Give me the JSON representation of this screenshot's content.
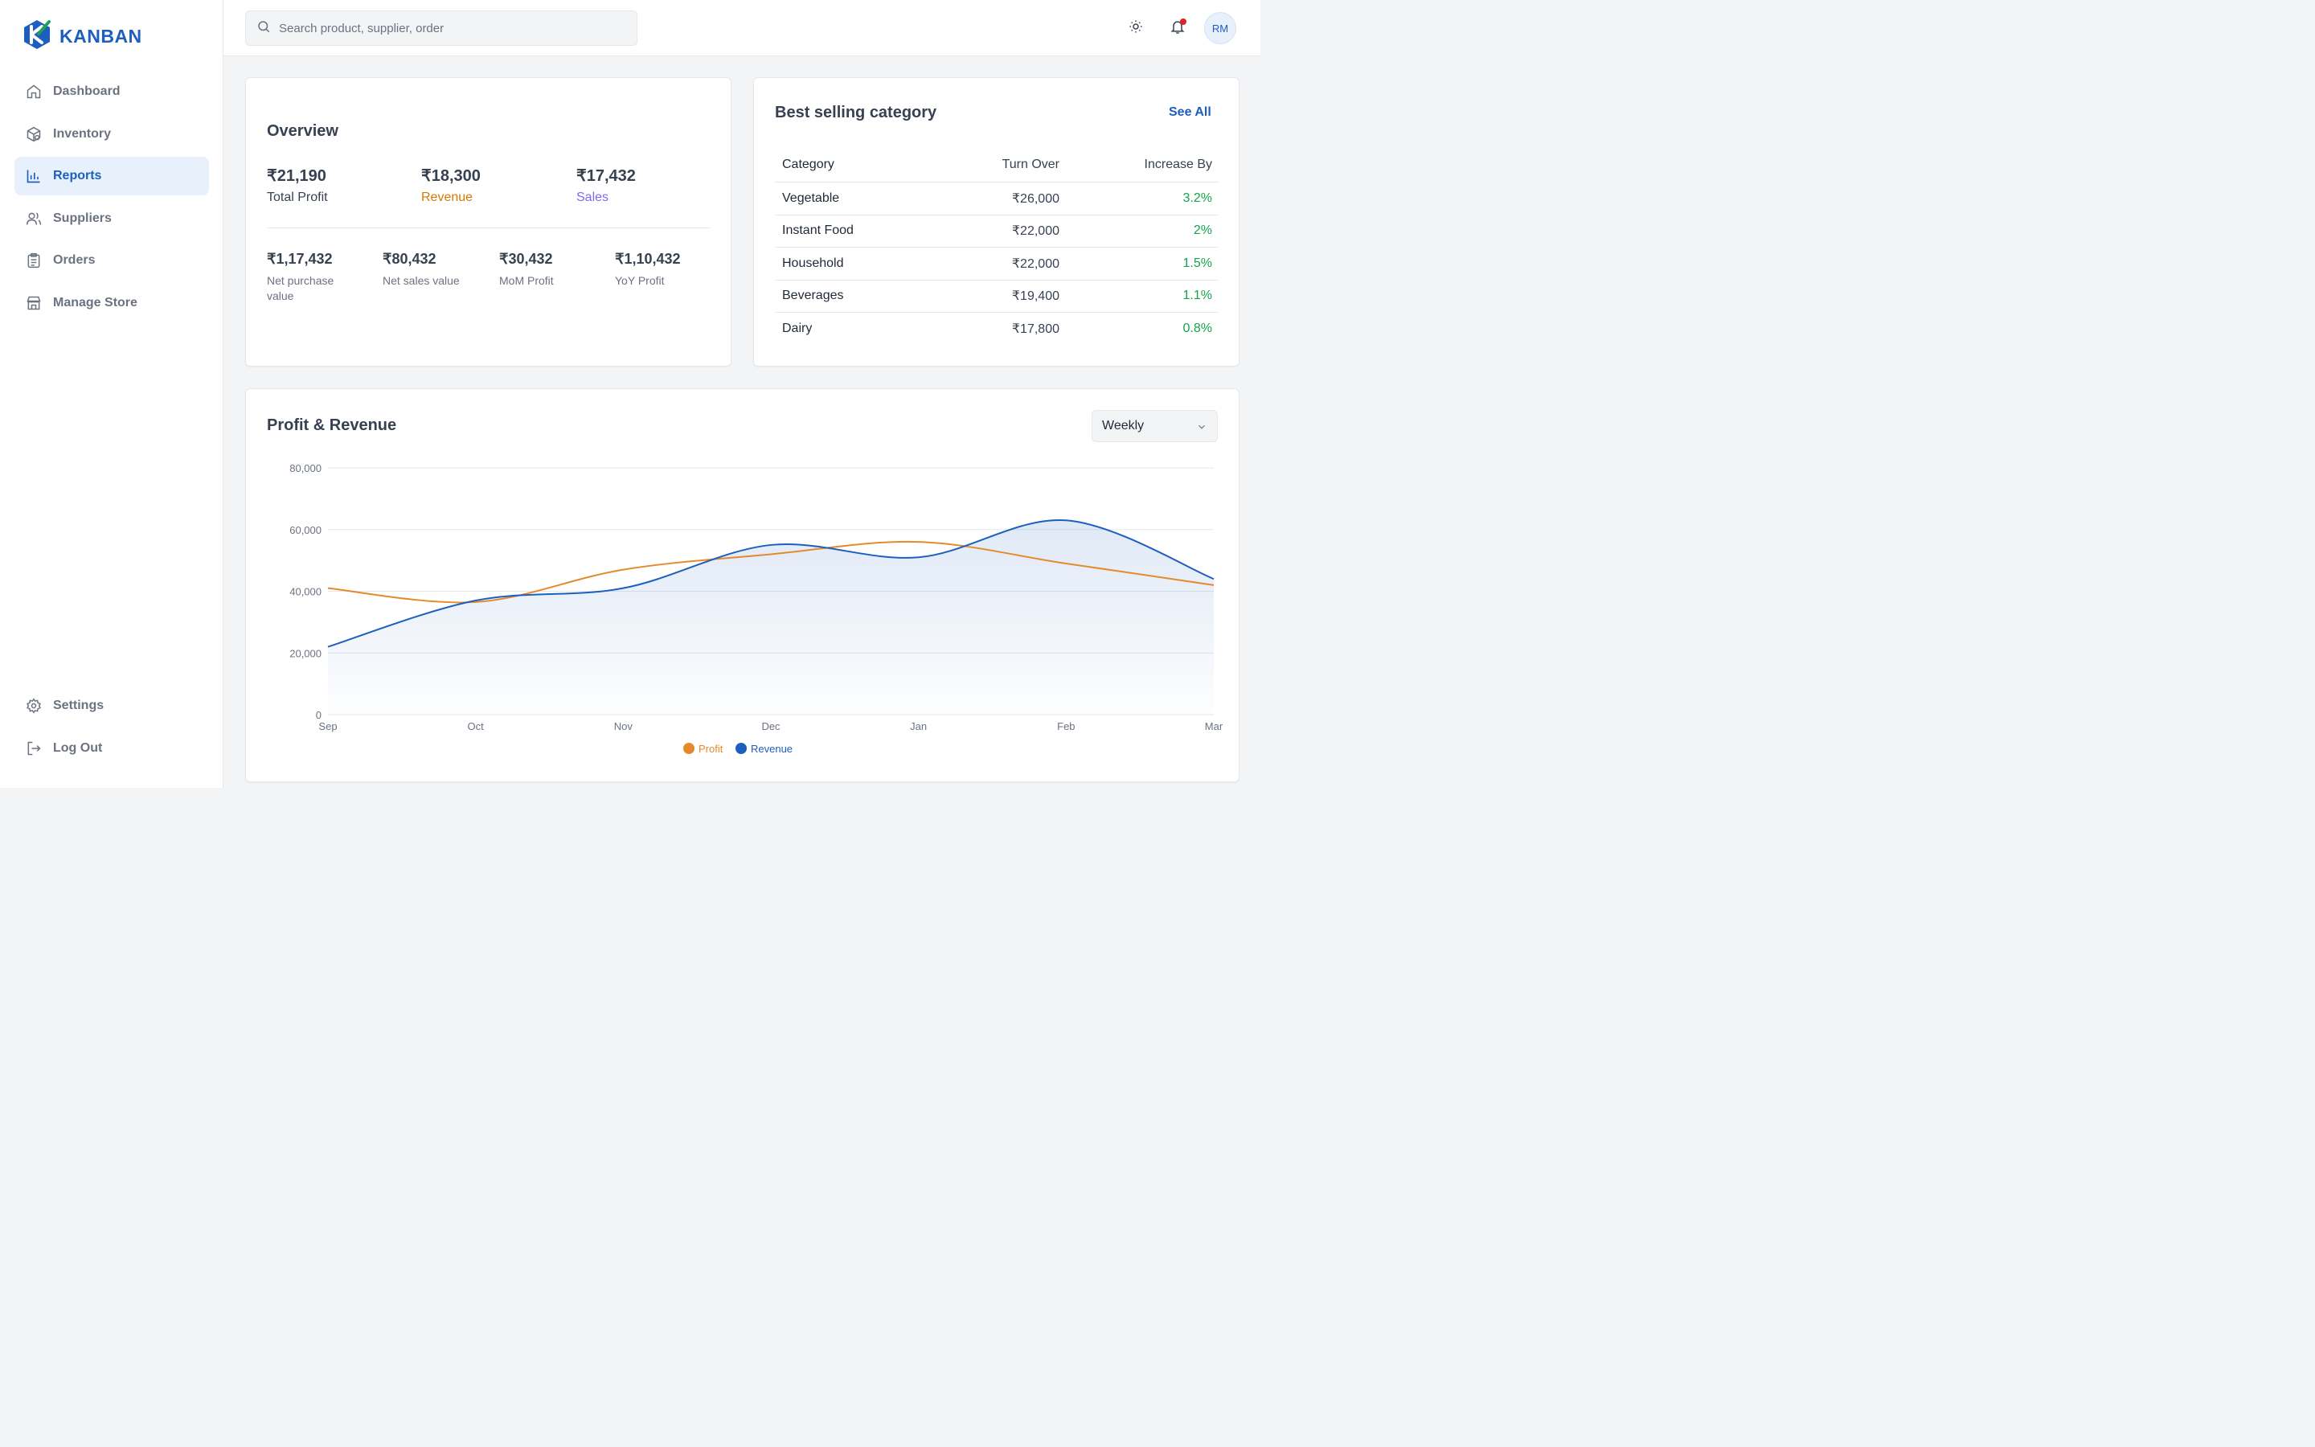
{
  "brand": {
    "name": "KANBAN"
  },
  "sidebar": {
    "items": [
      {
        "label": "Dashboard",
        "icon": "home-icon"
      },
      {
        "label": "Inventory",
        "icon": "package-icon"
      },
      {
        "label": "Reports",
        "icon": "bar-chart-icon",
        "active": true
      },
      {
        "label": "Suppliers",
        "icon": "users-icon"
      },
      {
        "label": "Orders",
        "icon": "clipboard-icon"
      },
      {
        "label": "Manage Store",
        "icon": "store-icon"
      }
    ],
    "bottom": [
      {
        "label": "Settings",
        "icon": "gear-icon"
      },
      {
        "label": "Log Out",
        "icon": "logout-icon"
      }
    ]
  },
  "topbar": {
    "search_placeholder": "Search product, supplier, order",
    "avatar_initials": "RM"
  },
  "overview": {
    "title": "Overview",
    "primary": [
      {
        "value": "₹21,190",
        "label": "Total Profit",
        "color": "#374151"
      },
      {
        "value": "₹18,300",
        "label": "Revenue",
        "color": "#d97706"
      },
      {
        "value": "₹17,432",
        "label": "Sales",
        "color": "#7c6cf0"
      }
    ],
    "secondary": [
      {
        "value": "₹1,17,432",
        "label": "Net purchase value"
      },
      {
        "value": "₹80,432",
        "label": "Net sales value"
      },
      {
        "value": "₹30,432",
        "label": "MoM Profit"
      },
      {
        "value": "₹1,10,432",
        "label": "YoY Profit"
      }
    ]
  },
  "best_selling": {
    "title": "Best selling category",
    "see_all": "See All",
    "columns": [
      "Category",
      "Turn Over",
      "Increase By"
    ],
    "rows": [
      [
        "Vegetable",
        "₹26,000",
        "3.2%"
      ],
      [
        "Instant Food",
        "₹22,000",
        "2%"
      ],
      [
        "Household",
        "₹22,000",
        "1.5%"
      ],
      [
        "Beverages",
        "₹19,400",
        "1.1%"
      ],
      [
        "Dairy",
        "₹17,800",
        "0.8%"
      ]
    ]
  },
  "profit_revenue": {
    "title": "Profit & Revenue",
    "period": "Weekly"
  },
  "chart_data": {
    "type": "line",
    "x": [
      "Sep",
      "Oct",
      "Nov",
      "Dec",
      "Jan",
      "Feb",
      "Mar"
    ],
    "ylim": [
      0,
      80000
    ],
    "yticks": [
      "0",
      "20,000",
      "40,000",
      "60,000",
      "80,000"
    ],
    "ytick_values": [
      0,
      20000,
      40000,
      60000,
      80000
    ],
    "grid": true,
    "legend": "bottom-center",
    "series": [
      {
        "name": "Profit",
        "color": "#e58a2b",
        "values": [
          41000,
          36500,
          47000,
          52000,
          56000,
          49000,
          42000
        ]
      },
      {
        "name": "Revenue",
        "color": "#1d5fbf",
        "values": [
          22000,
          37000,
          41000,
          55000,
          51000,
          63000,
          44000
        ]
      }
    ]
  },
  "colors": {
    "accent": "#1d5fbf",
    "positive": "#16a34a"
  }
}
